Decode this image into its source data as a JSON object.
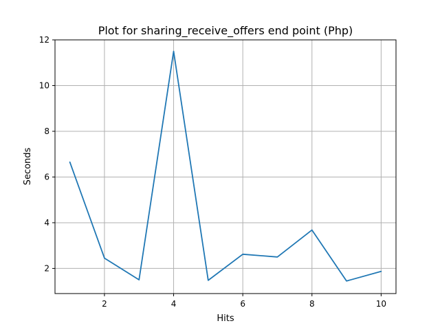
{
  "chart_data": {
    "type": "line",
    "title": "Plot for sharing_receive_offers end point (Php)",
    "xlabel": "Hits",
    "ylabel": "Seconds",
    "xlim": [
      0.57,
      10.43
    ],
    "ylim": [
      0.9,
      12.0
    ],
    "xticks": [
      2,
      4,
      6,
      8,
      10
    ],
    "yticks": [
      2,
      4,
      6,
      8,
      10,
      12
    ],
    "grid": true,
    "legend": "none",
    "series": [
      {
        "color": "#1f77b4",
        "x": [
          1,
          2,
          3,
          4,
          5,
          6,
          7,
          8,
          9,
          10
        ],
        "y": [
          6.65,
          2.45,
          1.5,
          11.5,
          1.48,
          2.62,
          2.5,
          3.68,
          1.45,
          1.87
        ]
      }
    ]
  }
}
